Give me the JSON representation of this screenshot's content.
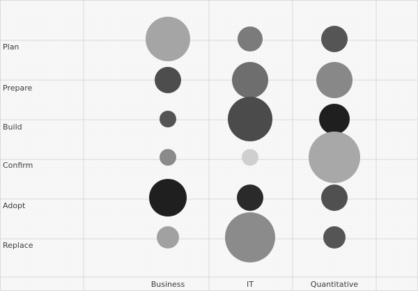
{
  "chart_data": {
    "type": "bubble-matrix",
    "title": "",
    "xlabel": "",
    "ylabel": "",
    "legend": "none",
    "grid": true,
    "columns": [
      "Business",
      "IT",
      "Quantitative"
    ],
    "rows": [
      "Plan",
      "Prepare",
      "Build",
      "Confirm",
      "Adopt",
      "Replace"
    ],
    "bubbles": [
      {
        "row": "Plan",
        "column": "Business",
        "size": 32,
        "fill": "#a5a5a5"
      },
      {
        "row": "Plan",
        "column": "IT",
        "size": 18,
        "fill": "#7b7b7b"
      },
      {
        "row": "Plan",
        "column": "Quantitative",
        "size": 19,
        "fill": "#555555"
      },
      {
        "row": "Prepare",
        "column": "Business",
        "size": 19,
        "fill": "#4d4d4d"
      },
      {
        "row": "Prepare",
        "column": "IT",
        "size": 26,
        "fill": "#6e6e6e"
      },
      {
        "row": "Prepare",
        "column": "Quantitative",
        "size": 26,
        "fill": "#888888"
      },
      {
        "row": "Build",
        "column": "Business",
        "size": 12,
        "fill": "#545454"
      },
      {
        "row": "Build",
        "column": "IT",
        "size": 32,
        "fill": "#4b4b4b"
      },
      {
        "row": "Build",
        "column": "Quantitative",
        "size": 22,
        "fill": "#1f1f1f"
      },
      {
        "row": "Confirm",
        "column": "Business",
        "size": 12,
        "fill": "#8a8a8a"
      },
      {
        "row": "Confirm",
        "column": "IT",
        "size": 12,
        "fill": "#cfcfcf"
      },
      {
        "row": "Confirm",
        "column": "Quantitative",
        "size": 37,
        "fill": "#a8a8a8"
      },
      {
        "row": "Adopt",
        "column": "Business",
        "size": 27,
        "fill": "#1f1f1f"
      },
      {
        "row": "Adopt",
        "column": "IT",
        "size": 19,
        "fill": "#2a2a2a"
      },
      {
        "row": "Adopt",
        "column": "Quantitative",
        "size": 19,
        "fill": "#505050"
      },
      {
        "row": "Replace",
        "column": "Business",
        "size": 16,
        "fill": "#a1a1a1"
      },
      {
        "row": "Replace",
        "column": "IT",
        "size": 36,
        "fill": "#8b8b8b"
      },
      {
        "row": "Replace",
        "column": "Quantitative",
        "size": 16,
        "fill": "#555555"
      }
    ],
    "colors": {
      "background": "#f8f8f8",
      "grid": "#cfcfcf",
      "text": "#3b3b3b"
    }
  }
}
